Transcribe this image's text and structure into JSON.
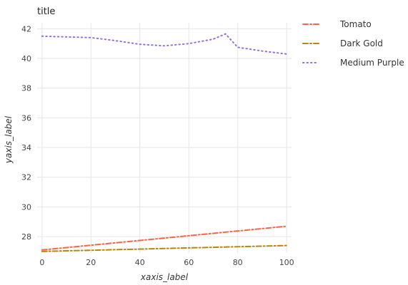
{
  "chart_data": {
    "type": "line",
    "title": "title",
    "xlabel": "xaxis_label",
    "ylabel": "yaxis_label",
    "xlim": [
      -2,
      102
    ],
    "ylim": [
      26.9,
      42.4
    ],
    "x_ticks": [
      0,
      20,
      40,
      60,
      80,
      100
    ],
    "y_ticks": [
      28,
      30,
      32,
      34,
      36,
      38,
      40,
      42
    ],
    "grid": true,
    "legend_position": "right",
    "series": [
      {
        "name": "Tomato",
        "color": "#ff6347",
        "dash": "dashdot",
        "x": [
          0,
          100
        ],
        "y": [
          27.1,
          28.7
        ]
      },
      {
        "name": "Dark Gold",
        "color": "#b8860b",
        "dash": "dashdot",
        "x": [
          0,
          100
        ],
        "y": [
          27.0,
          27.4
        ]
      },
      {
        "name": "Medium Purple",
        "color": "#9370db",
        "dash": "dotted",
        "x": [
          0,
          10,
          20,
          30,
          40,
          50,
          60,
          70,
          75,
          80,
          90,
          100
        ],
        "y": [
          41.5,
          41.45,
          41.4,
          41.2,
          40.95,
          40.85,
          41.0,
          41.3,
          41.65,
          40.75,
          40.5,
          40.3
        ]
      }
    ]
  }
}
